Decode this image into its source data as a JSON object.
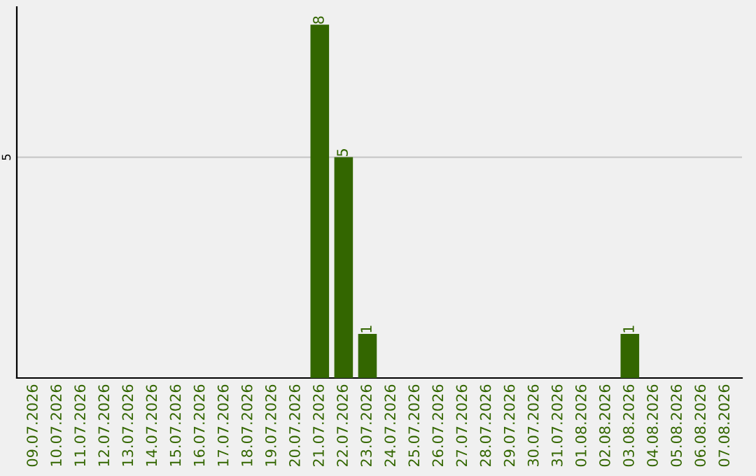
{
  "chart_data": {
    "type": "bar",
    "categories": [
      "09.07.2026",
      "10.07.2026",
      "11.07.2026",
      "12.07.2026",
      "13.07.2026",
      "14.07.2026",
      "15.07.2026",
      "16.07.2026",
      "17.07.2026",
      "18.07.2026",
      "19.07.2026",
      "20.07.2026",
      "21.07.2026",
      "22.07.2026",
      "23.07.2026",
      "24.07.2026",
      "25.07.2026",
      "26.07.2026",
      "27.07.2026",
      "28.07.2026",
      "29.07.2026",
      "30.07.2026",
      "31.07.2026",
      "01.08.2026",
      "02.08.2026",
      "03.08.2026",
      "04.08.2026",
      "05.08.2026",
      "06.08.2026",
      "07.08.2026"
    ],
    "values": [
      null,
      null,
      null,
      null,
      null,
      null,
      null,
      null,
      null,
      null,
      null,
      null,
      8,
      5,
      1,
      null,
      null,
      null,
      null,
      null,
      null,
      null,
      null,
      null,
      null,
      1,
      null,
      null,
      null,
      null
    ],
    "color": "#336600",
    "ylim": [
      0,
      8.4
    ],
    "yticks": [
      {
        "value": 0,
        "label": null
      },
      5
    ],
    "grid": "y",
    "data_labels": true,
    "legend": false
  }
}
